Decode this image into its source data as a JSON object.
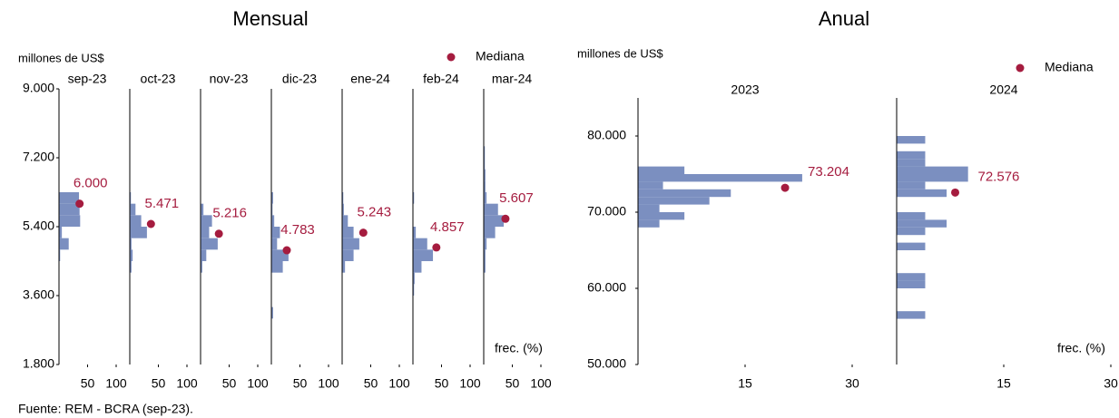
{
  "chart_data": [
    {
      "type": "histogram",
      "orientation": "horizontal",
      "title": "Mensual",
      "y_label": "millones de US$",
      "legend": "Mediana",
      "x_label": "frec. (%)",
      "color": "#7b8fc0",
      "median_color": "#a51c3f",
      "ylim": [
        1800,
        9000
      ],
      "yticks": [
        {
          "value": 1800,
          "label": "1.800"
        },
        {
          "value": 3600,
          "label": "3.600"
        },
        {
          "value": 5400,
          "label": "5.400"
        },
        {
          "value": 7200,
          "label": "7.200"
        },
        {
          "value": 9000,
          "label": "9.000"
        }
      ],
      "xlim": [
        0,
        100
      ],
      "xticks": [
        50,
        100
      ],
      "panels": [
        {
          "title": "sep-23",
          "bins": [
            4500,
            4800,
            5100,
            5400,
            5700,
            6000,
            6300
          ],
          "values": [
            2,
            17,
            5,
            37,
            36,
            35
          ],
          "median": 6000,
          "median_label": "6.000",
          "median_freq": 36
        },
        {
          "title": "oct-23",
          "bins": [
            4200,
            4500,
            4800,
            5100,
            5400,
            5700,
            6000,
            6300
          ],
          "values": [
            3,
            5,
            3,
            30,
            20,
            10,
            2
          ],
          "median": 5471,
          "median_label": "5.471",
          "median_freq": 37
        },
        {
          "title": "nov-23",
          "bins": [
            4200,
            4500,
            4800,
            5100,
            5400,
            5700,
            6000
          ],
          "values": [
            3,
            10,
            30,
            15,
            20,
            5
          ],
          "median": 5216,
          "median_label": "5.216",
          "median_freq": 32
        },
        {
          "title": "dic-23",
          "bins": [
            3000,
            3300,
            3600,
            3900,
            4200,
            4500,
            4800,
            5100,
            5400,
            5700,
            6000,
            6300
          ],
          "values": [
            3,
            0,
            0,
            0,
            20,
            30,
            10,
            15,
            5,
            2,
            3
          ],
          "median": 4783,
          "median_label": "4.783",
          "median_freq": 27
        },
        {
          "title": "ene-24",
          "bins": [
            4200,
            4500,
            4800,
            5100,
            5400,
            5700,
            6000,
            6300
          ],
          "values": [
            5,
            20,
            30,
            20,
            10,
            3,
            2
          ],
          "median": 5243,
          "median_label": "5.243",
          "median_freq": 37
        },
        {
          "title": "feb-24",
          "bins": [
            3600,
            3900,
            4200,
            4500,
            4800,
            5100,
            5400,
            5700,
            6000,
            6300
          ],
          "values": [
            2,
            3,
            15,
            35,
            25,
            5,
            0,
            0,
            2
          ],
          "median": 4857,
          "median_label": "4.857",
          "median_freq": 41
        },
        {
          "title": "mar-24",
          "bins": [
            4200,
            4500,
            4800,
            5100,
            5400,
            5700,
            6000,
            6300,
            6600,
            6900,
            7200,
            7500
          ],
          "values": [
            3,
            3,
            5,
            20,
            35,
            25,
            5,
            3,
            3,
            2,
            2
          ],
          "median": 5607,
          "median_label": "5.607",
          "median_freq": 38
        }
      ]
    },
    {
      "type": "histogram",
      "orientation": "horizontal",
      "title": "Anual",
      "y_label": "millones de US$",
      "legend": "Mediana",
      "x_label": "frec. (%)",
      "color": "#7b8fc0",
      "median_color": "#a51c3f",
      "ylim": [
        50000,
        85000
      ],
      "yticks": [
        {
          "value": 50000,
          "label": "50.000"
        },
        {
          "value": 60000,
          "label": "60.000"
        },
        {
          "value": 70000,
          "label": "70.000"
        },
        {
          "value": 80000,
          "label": "80.000"
        }
      ],
      "xlim": [
        0,
        30
      ],
      "xticks": [
        15,
        30
      ],
      "panels": [
        {
          "title": "2023",
          "bins": [
            68000,
            69000,
            70000,
            71000,
            72000,
            73000,
            74000,
            75000,
            76000
          ],
          "values": [
            3,
            6.5,
            3,
            10,
            13,
            3.5,
            23,
            6.5
          ],
          "median": 73204,
          "median_label": "73.204",
          "median_freq": 20.6
        },
        {
          "title": "2024",
          "bins": [
            55000,
            56000,
            57000,
            58000,
            59000,
            60000,
            61000,
            62000,
            63000,
            64000,
            65000,
            66000,
            67000,
            68000,
            69000,
            70000,
            71000,
            72000,
            73000,
            74000,
            75000,
            76000,
            77000,
            78000,
            79000,
            80000
          ],
          "values": [
            0,
            4,
            0,
            0,
            0,
            4,
            4,
            0,
            0,
            0,
            4,
            0,
            4,
            7,
            4,
            0,
            0,
            7,
            4,
            10,
            10,
            4,
            4,
            0,
            4
          ],
          "median": 72576,
          "median_label": "72.576",
          "median_freq": 8.2
        }
      ]
    }
  ],
  "source": "Fuente: REM - BCRA (sep-23)."
}
